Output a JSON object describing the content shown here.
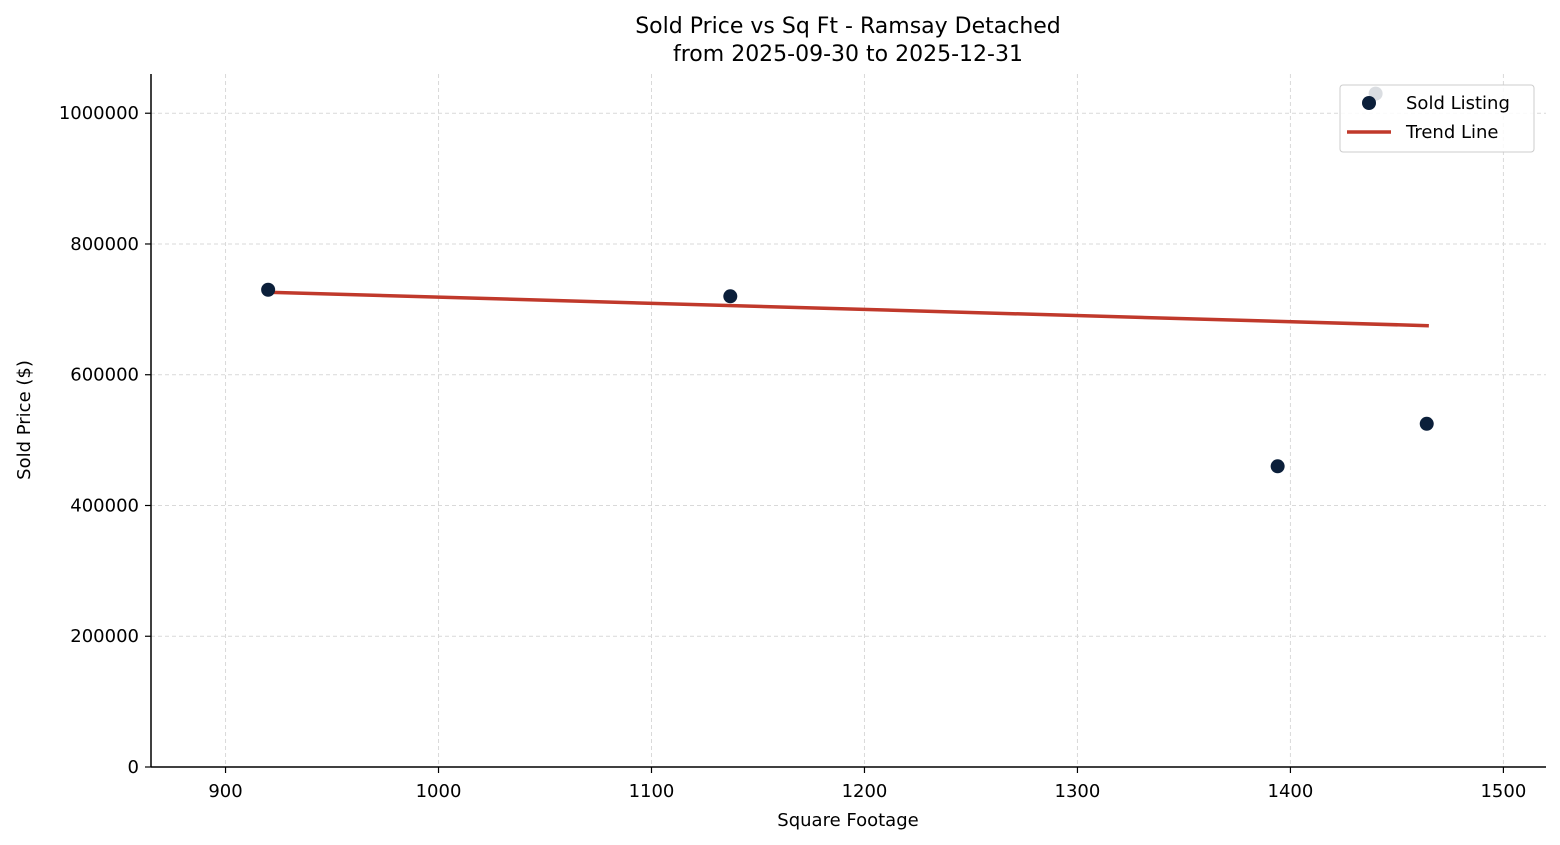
{
  "chart_data": {
    "type": "scatter",
    "title": "Sold Price vs Sq Ft - Ramsay Detached",
    "subtitle": "from 2025-09-30 to 2025-12-31",
    "xlabel": "Square Footage",
    "ylabel": "Sold Price ($)",
    "xlim": [
      865,
      1520
    ],
    "ylim": [
      0,
      1060000
    ],
    "x_ticks": [
      900,
      1000,
      1100,
      1200,
      1300,
      1400,
      1500
    ],
    "y_ticks": [
      0,
      200000,
      400000,
      600000,
      800000,
      1000000
    ],
    "grid": true,
    "legend": {
      "placement": "top-right",
      "entries": [
        "Sold Listing",
        "Trend Line"
      ]
    },
    "series": [
      {
        "name": "Sold Listing",
        "kind": "scatter",
        "color": "#0b1f3a",
        "points": [
          {
            "x": 920,
            "y": 730000
          },
          {
            "x": 1137,
            "y": 720000
          },
          {
            "x": 1394,
            "y": 460000
          },
          {
            "x": 1464,
            "y": 525000
          },
          {
            "x": 1440,
            "y": 1030000
          }
        ]
      },
      {
        "name": "Trend Line",
        "kind": "line",
        "color": "#c0392b",
        "points": [
          {
            "x": 922,
            "y": 726000
          },
          {
            "x": 1465,
            "y": 675000
          }
        ]
      }
    ]
  }
}
